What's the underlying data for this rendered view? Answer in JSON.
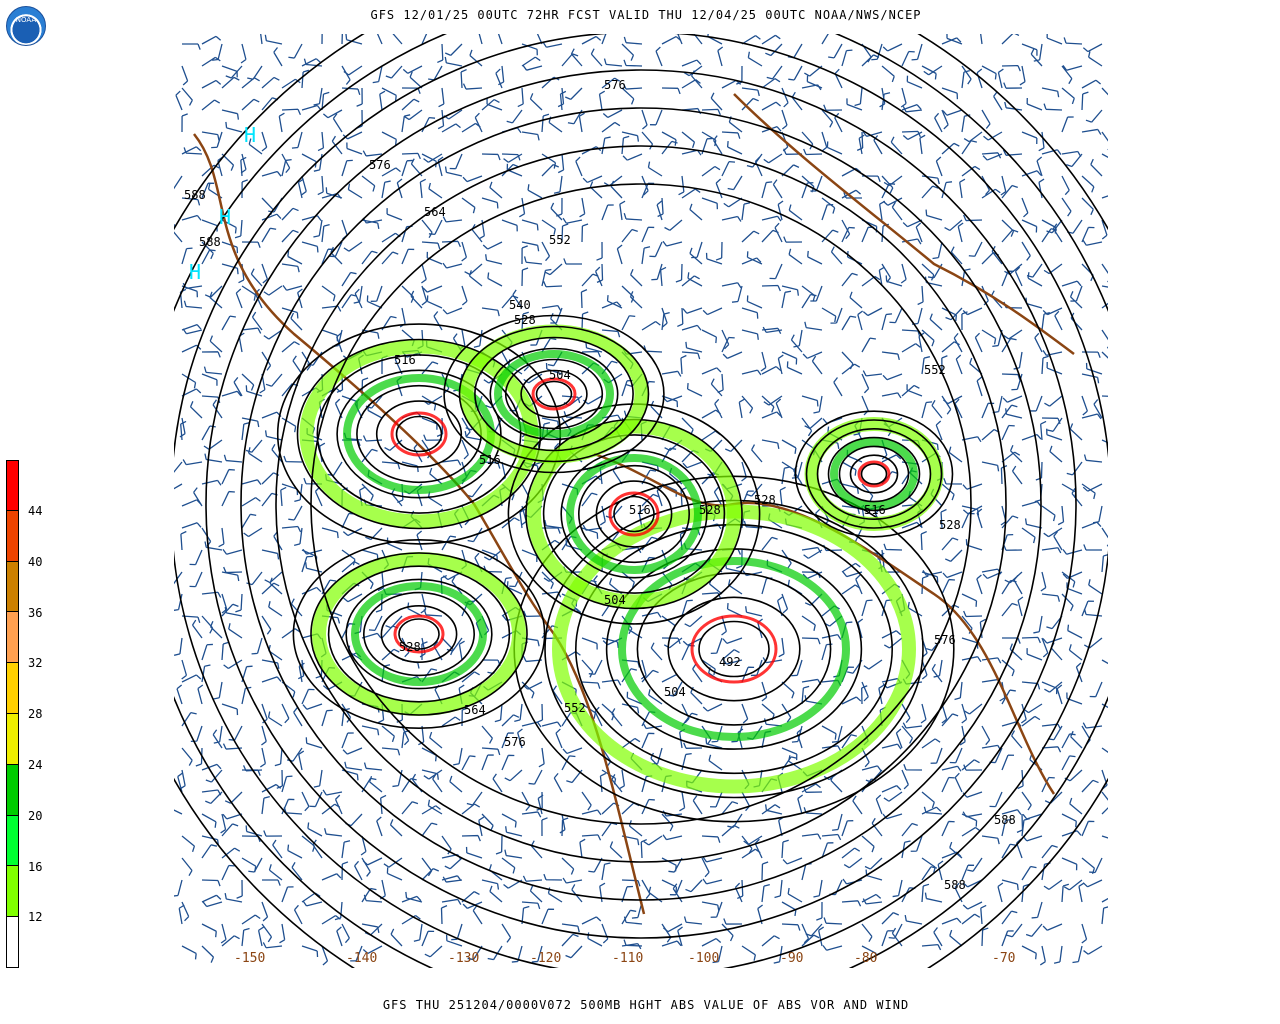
{
  "header": {
    "title": "GFS 12/01/25 00UTC 72HR FCST VALID THU 12/04/25 00UTC NOAA/NWS/NCEP",
    "logo_text": "NOAA"
  },
  "footer": {
    "caption": "GFS THU 251204/0000V072 500MB HGHT ABS VALUE OF ABS VOR AND WIND"
  },
  "colorbar": {
    "labels": [
      "44",
      "40",
      "36",
      "32",
      "28",
      "24",
      "20",
      "16",
      "12"
    ],
    "colors": [
      "#ff0000",
      "#ee4400",
      "#cc8000",
      "#ffa050",
      "#ffd000",
      "#eeee00",
      "#00cc00",
      "#00ff30",
      "#80ff00",
      "#ffffff"
    ]
  },
  "map": {
    "longitude_labels": [
      "-150",
      "-140",
      "-130",
      "-120",
      "-110",
      "-100",
      "-90",
      "-80",
      "-70"
    ],
    "height_labels": [
      "576",
      "576",
      "588",
      "588",
      "564",
      "552",
      "540",
      "528",
      "516",
      "504",
      "516",
      "492",
      "504",
      "528",
      "552",
      "564",
      "576",
      "528",
      "516",
      "528",
      "552",
      "576",
      "588",
      "588",
      "504",
      "516",
      "528"
    ],
    "high_labels": [
      "H",
      "H",
      "H"
    ],
    "colors": {
      "contour": "#000000",
      "wind_barb": "#1f4f8f",
      "coastline": "#8b4513",
      "vorticity_low": "#80ff00",
      "vorticity_mid": "#00cc00",
      "vorticity_high": "#ff0000",
      "marker": "#00e5ff"
    }
  }
}
